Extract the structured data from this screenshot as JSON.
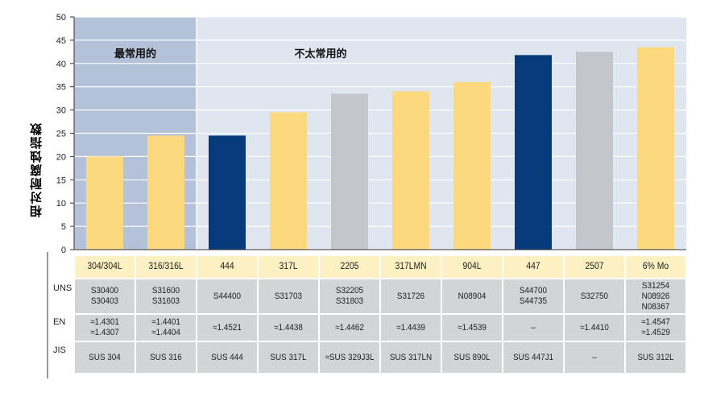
{
  "chart_data": {
    "type": "bar",
    "ylabel": "相对耐腐蚀指数",
    "ylim": [
      0,
      50
    ],
    "yticks": [
      0,
      5,
      10,
      15,
      20,
      25,
      30,
      35,
      40,
      45,
      50
    ],
    "group_labels": {
      "most_common": "最常用的",
      "less_common": "不太常用的"
    },
    "categories": [
      "304/304L",
      "316/316L",
      "444",
      "317L",
      "2205",
      "317LMN",
      "904L",
      "447",
      "2507",
      "6% Mo"
    ],
    "values": [
      20,
      24.5,
      24.5,
      29.5,
      33.5,
      34,
      36,
      41.8,
      42.5,
      43.5
    ],
    "bar_kinds": [
      "austenitic",
      "austenitic",
      "ferritic",
      "austenitic",
      "duplex",
      "austenitic",
      "austenitic",
      "ferritic",
      "duplex",
      "austenitic"
    ],
    "colors": {
      "austenitic": "#fcd97e",
      "ferritic": "#063a7a",
      "duplex": "#c3c6ca",
      "plot_bg": "#dfe6f0",
      "most_common_bg": "#b3c2d8",
      "header_row_bg": "#fdf0c2",
      "cell_bg": "#d3d4d6"
    },
    "table": {
      "row_labels": [
        "UNS",
        "EN",
        "JIS"
      ],
      "rows": [
        [
          "S30400\nS30403",
          "S31600\nS31603",
          "S44400",
          "S31703",
          "S32205\nS31803",
          "S31726",
          "N08904",
          "S44700\nS44735",
          "S32750",
          "S31254\nN08926\nN08367"
        ],
        [
          "≈1.4301\n≈1.4307",
          "≈1.4401\n≈1.4404",
          "≈1.4521",
          "≈1.4438",
          "≈1.4462",
          "≈1.4439",
          "≈1.4539",
          "–",
          "≈1.4410",
          "≈1.4547\n≈1.4529"
        ],
        [
          "SUS 304",
          "SUS 316",
          "SUS 444",
          "SUS 317L",
          "≈SUS 329J3L",
          "SUS 317LN",
          "SUS 890L",
          "SUS 447J1",
          "–",
          "SUS 312L"
        ]
      ]
    }
  }
}
